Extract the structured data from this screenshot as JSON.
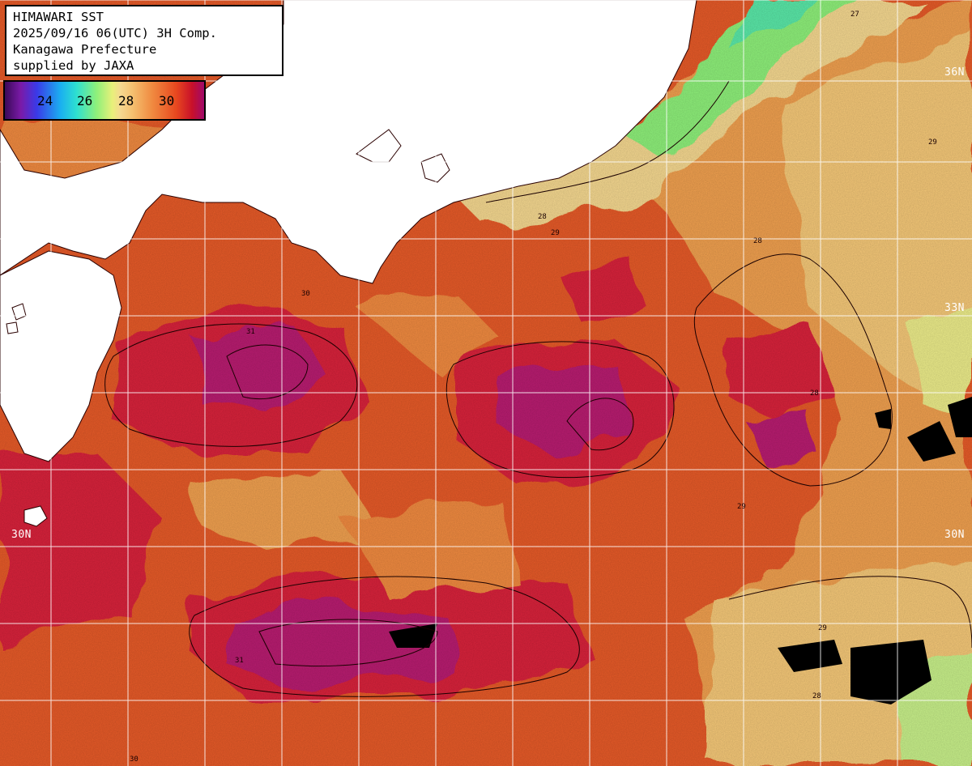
{
  "info": {
    "line1": "HIMAWARI SST",
    "line2": "2025/09/16 06(UTC) 3H Comp.",
    "line3": "Kanagawa Prefecture",
    "line4": "supplied by JAXA"
  },
  "legend": {
    "ticks": [
      "24",
      "26",
      "28",
      "30"
    ],
    "colors": {
      "cold": "#3a0a58",
      "t24": "#3a3ae8",
      "t26": "#2ee0d0",
      "t28": "#e8f07a",
      "t30": "#e8481f",
      "hot": "#a00a6a"
    }
  },
  "lat_labels": {
    "right_36": "36N",
    "right_33": "33N",
    "left_30": "30N",
    "right_30": "30N"
  },
  "contour_labels": [
    "27",
    "28",
    "29",
    "30",
    "31"
  ]
}
